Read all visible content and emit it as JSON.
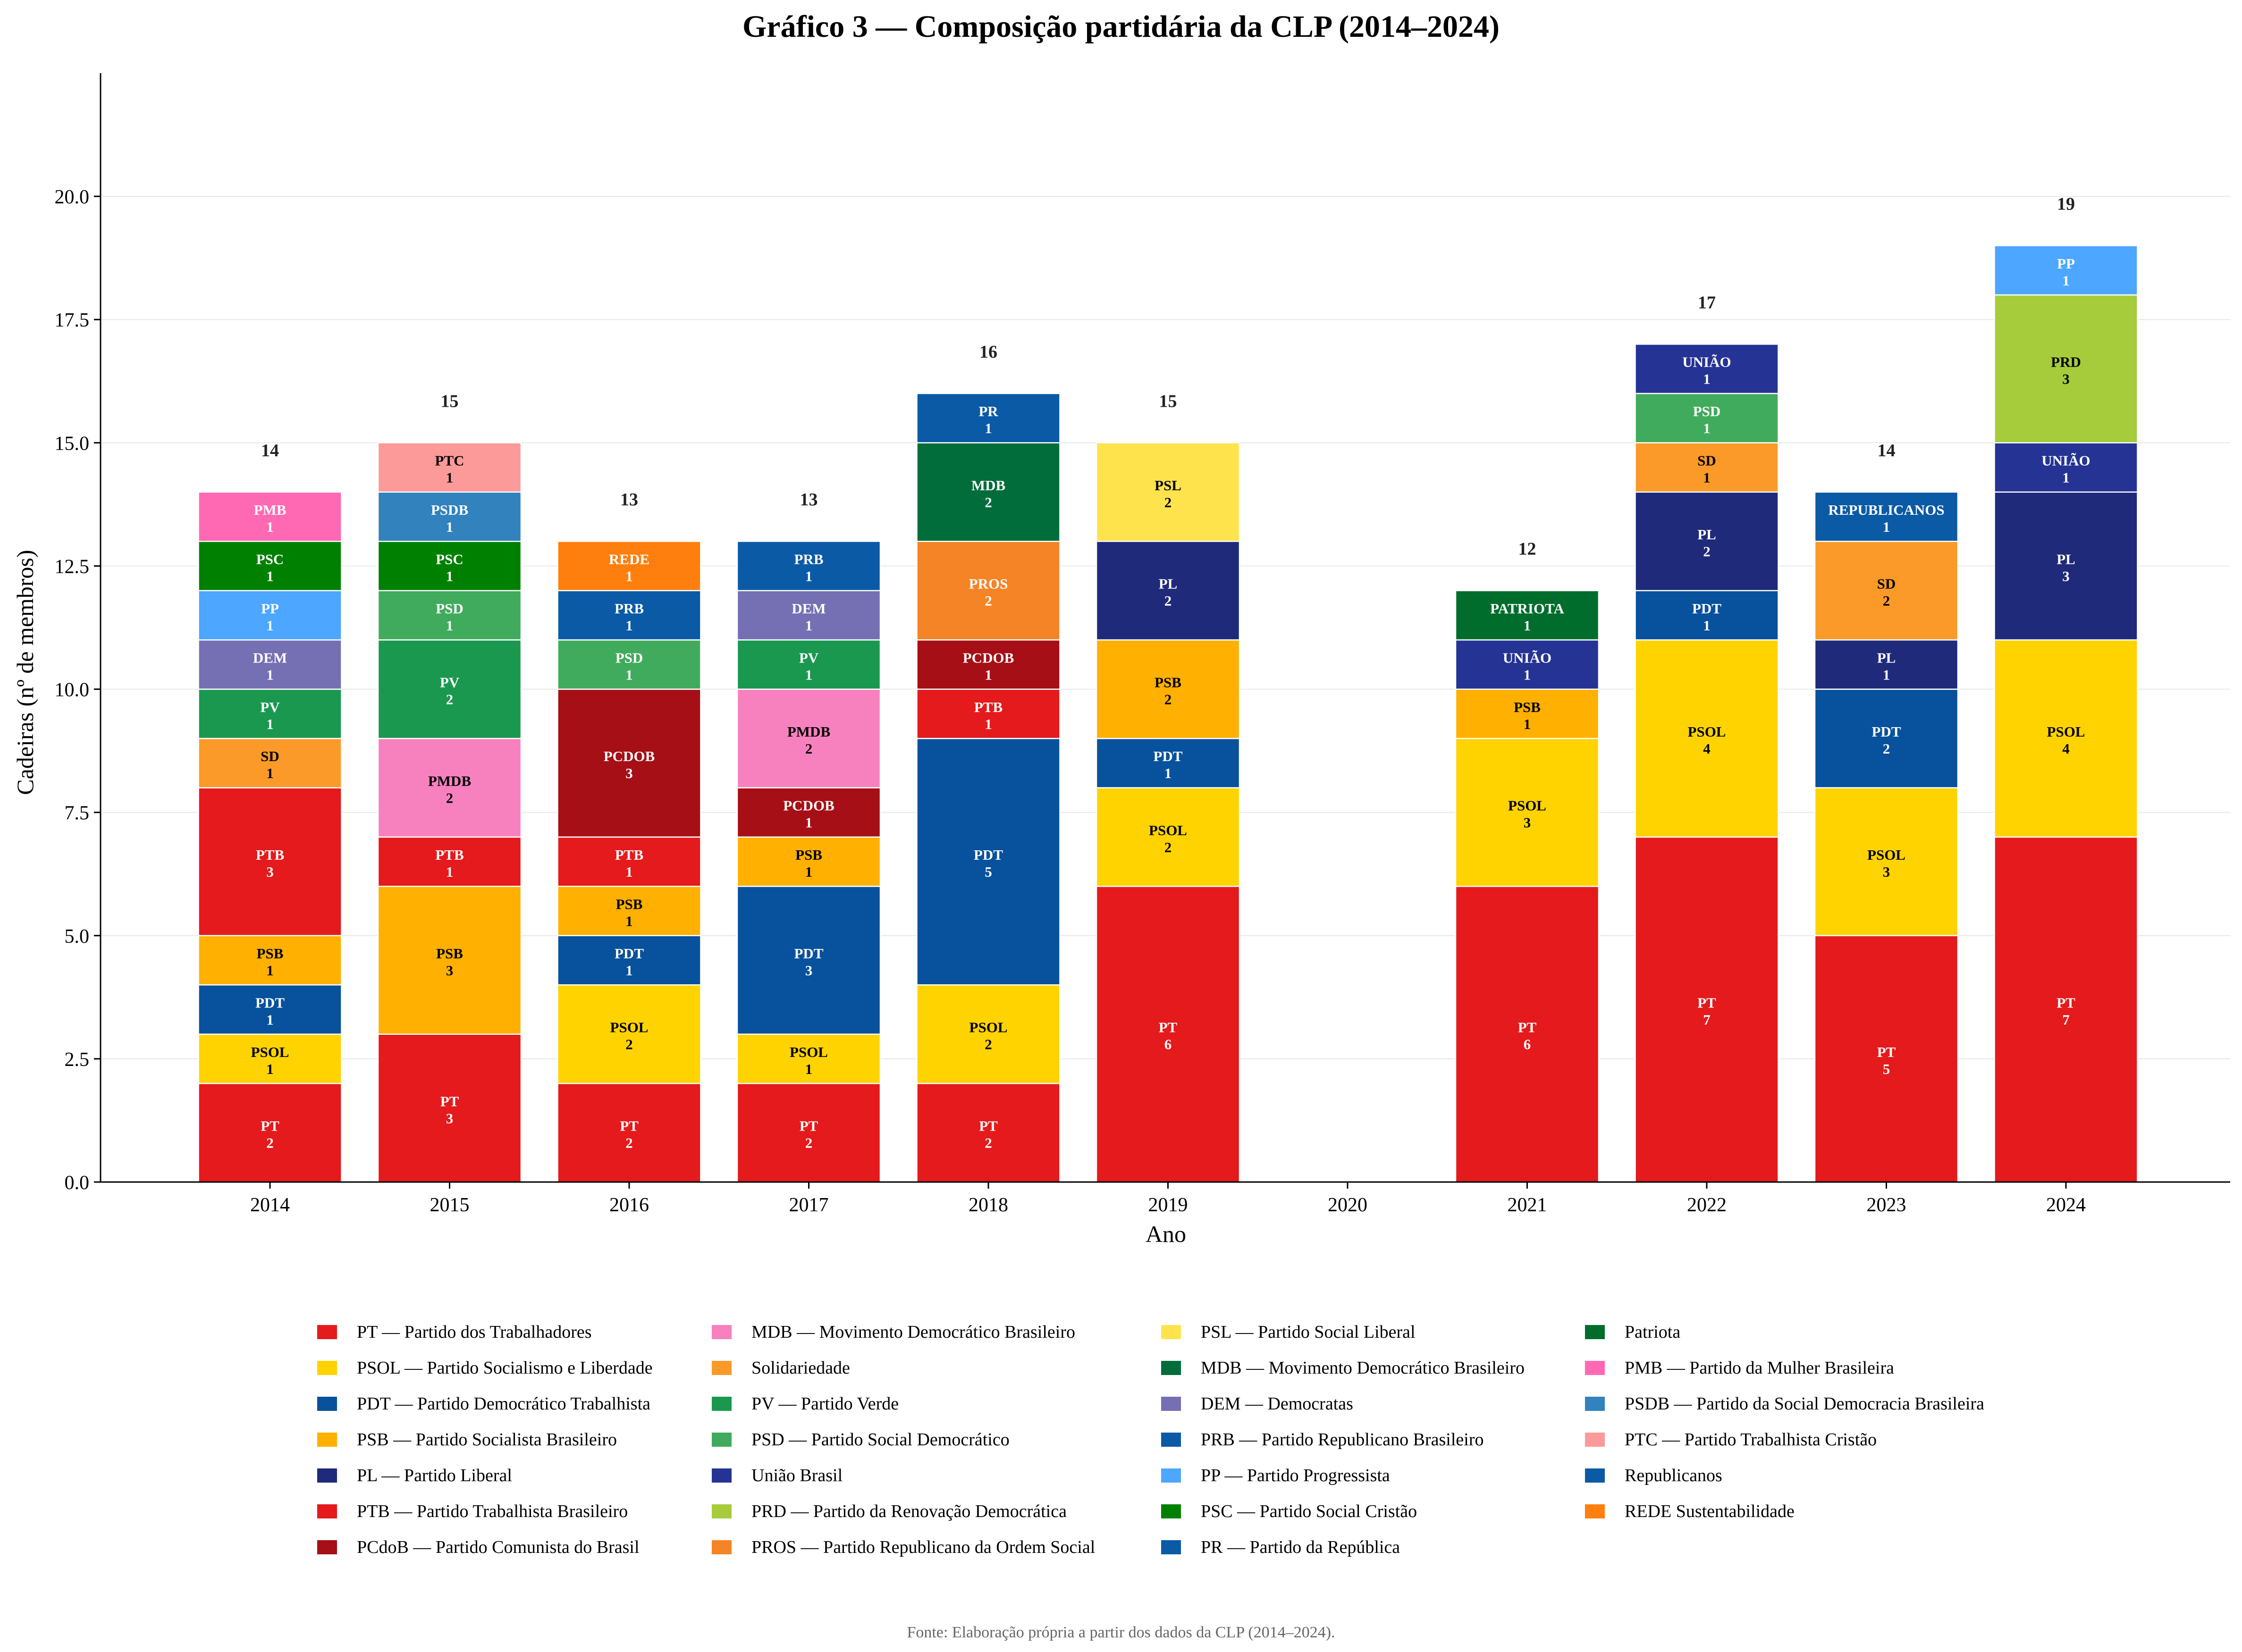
{
  "chart_data": {
    "type": "bar",
    "stacked": true,
    "title": "Gráfico 3 — Composição partidária da CLP (2014–2024)",
    "xlabel": "Ano",
    "ylabel": "Cadeiras (nº de membros)",
    "ylim": [
      0,
      22.5
    ],
    "yticks": [
      "0.0",
      "2.5",
      "5.0",
      "7.5",
      "10.0",
      "12.5",
      "15.0",
      "17.5",
      "20.0"
    ],
    "grid": "y",
    "source": "Fonte: Elaboração própria a partir dos dados da CLP (2014–2024).",
    "parties": {
      "PT": {
        "legend": "PT — Partido dos Trabalhadores",
        "color": "#e41a1c",
        "text": "#ffffff"
      },
      "PSOL": {
        "legend": "PSOL — Partido Socialismo e Liberdade",
        "color": "#ffd300",
        "text": "#000000"
      },
      "PDT": {
        "legend": "PDT — Partido Democrático Trabalhista",
        "color": "#08519c",
        "text": "#ffffff"
      },
      "PSB": {
        "legend": "PSB — Partido Socialista Brasileiro",
        "color": "#ffb000",
        "text": "#000000"
      },
      "PL": {
        "legend": "PL — Partido Liberal",
        "color": "#1f2a7a",
        "text": "#ffffff"
      },
      "PTB": {
        "legend": "PTB — Partido Trabalhista Brasileiro",
        "color": "#e41a1c",
        "text": "#ffffff"
      },
      "PCDOB": {
        "legend": "PCdoB — Partido Comunista do Brasil",
        "color": "#a50f15",
        "text": "#ffffff"
      },
      "PMDB": {
        "legend": "MDB — Movimento Democrático Brasileiro",
        "color": "#f781bf",
        "text": "#000000"
      },
      "SD": {
        "legend": "Solidariedade",
        "color": "#fb9a29",
        "text": "#000000"
      },
      "PV": {
        "legend": "PV — Partido Verde",
        "color": "#1a9850",
        "text": "#ffffff"
      },
      "PSD": {
        "legend": "PSD — Partido Social Democrático",
        "color": "#41ab5d",
        "text": "#ffffff"
      },
      "UNIÃO": {
        "legend": "União Brasil",
        "color": "#253494",
        "text": "#ffffff"
      },
      "PRD": {
        "legend": "PRD — Partido da Renovação Democrática",
        "color": "#a6cc3c",
        "text": "#000000"
      },
      "PROS": {
        "legend": "PROS — Partido Republicano da Ordem Social",
        "color": "#f58426",
        "text": "#ffffff"
      },
      "PSL": {
        "legend": "PSL — Partido Social Liberal",
        "color": "#ffe34d",
        "text": "#000000"
      },
      "MDB": {
        "legend": "MDB — Movimento Democrático Brasileiro",
        "color": "#006d3a",
        "text": "#ffffff"
      },
      "DEM": {
        "legend": "DEM — Democratas",
        "color": "#7570b3",
        "text": "#ffffff"
      },
      "PRB": {
        "legend": "PRB — Partido Republicano Brasileiro",
        "color": "#0b5aa6",
        "text": "#ffffff"
      },
      "PP": {
        "legend": "PP — Partido Progressista",
        "color": "#4da6ff",
        "text": "#ffffff"
      },
      "PSC": {
        "legend": "PSC — Partido Social Cristão",
        "color": "#008000",
        "text": "#ffffff"
      },
      "PR": {
        "legend": "PR — Partido da República",
        "color": "#0b5aa6",
        "text": "#ffffff"
      },
      "PATRIOTA": {
        "legend": "Patriota",
        "color": "#006d2c",
        "text": "#ffffff"
      },
      "PMB": {
        "legend": "PMB — Partido da Mulher Brasileira",
        "color": "#ff69b4",
        "text": "#ffffff"
      },
      "PSDB": {
        "legend": "PSDB — Partido da Social Democracia Brasileira",
        "color": "#3182bd",
        "text": "#ffffff"
      },
      "PTC": {
        "legend": "PTC — Partido Trabalhista Cristão",
        "color": "#fb9a99",
        "text": "#000000"
      },
      "REPUBLICANOS": {
        "legend": "Republicanos",
        "color": "#0b5aa6",
        "text": "#ffffff"
      },
      "REDE": {
        "legend": "REDE Sustentabilidade",
        "color": "#ff7f0e",
        "text": "#ffffff"
      }
    },
    "legend_order": [
      "PT",
      "PSOL",
      "PDT",
      "PSB",
      "PL",
      "PTB",
      "PCDOB",
      "PMDB",
      "SD",
      "PV",
      "PSD",
      "UNIÃO",
      "PRD",
      "PROS",
      "PSL",
      "MDB",
      "DEM",
      "PRB",
      "PP",
      "PSC",
      "PR",
      "PATRIOTA",
      "PMB",
      "PSDB",
      "PTC",
      "REPUBLICANOS",
      "REDE"
    ],
    "years": [
      {
        "year": "2014",
        "total": "14",
        "stack": [
          [
            "PT",
            2
          ],
          [
            "PSOL",
            1
          ],
          [
            "PDT",
            1
          ],
          [
            "PSB",
            1
          ],
          [
            "PTB",
            3
          ],
          [
            "SD",
            1
          ],
          [
            "PV",
            1
          ],
          [
            "DEM",
            1
          ],
          [
            "PP",
            1
          ],
          [
            "PSC",
            1
          ],
          [
            "PMB",
            1
          ]
        ]
      },
      {
        "year": "2015",
        "total": "15",
        "stack": [
          [
            "PT",
            3
          ],
          [
            "PSB",
            3
          ],
          [
            "PTB",
            1
          ],
          [
            "PMDB",
            2
          ],
          [
            "PV",
            2
          ],
          [
            "PSD",
            1
          ],
          [
            "PSC",
            1
          ],
          [
            "PSDB",
            1
          ],
          [
            "PTC",
            1
          ]
        ]
      },
      {
        "year": "2016",
        "total": "13",
        "stack": [
          [
            "PT",
            2
          ],
          [
            "PSOL",
            2
          ],
          [
            "PDT",
            1
          ],
          [
            "PSB",
            1
          ],
          [
            "PTB",
            1
          ],
          [
            "PCDOB",
            3
          ],
          [
            "PSD",
            1
          ],
          [
            "PRB",
            1
          ],
          [
            "REDE",
            1
          ]
        ]
      },
      {
        "year": "2017",
        "total": "13",
        "stack": [
          [
            "PT",
            2
          ],
          [
            "PSOL",
            1
          ],
          [
            "PDT",
            3
          ],
          [
            "PSB",
            1
          ],
          [
            "PCDOB",
            1
          ],
          [
            "PMDB",
            2
          ],
          [
            "PV",
            1
          ],
          [
            "DEM",
            1
          ],
          [
            "PRB",
            1
          ]
        ]
      },
      {
        "year": "2018",
        "total": "16",
        "stack": [
          [
            "PT",
            2
          ],
          [
            "PSOL",
            2
          ],
          [
            "PDT",
            5
          ],
          [
            "PTB",
            1
          ],
          [
            "PCDOB",
            1
          ],
          [
            "PROS",
            2
          ],
          [
            "MDB",
            2
          ],
          [
            "PR",
            1
          ]
        ]
      },
      {
        "year": "2019",
        "total": "15",
        "stack": [
          [
            "PT",
            6
          ],
          [
            "PSOL",
            2
          ],
          [
            "PDT",
            1
          ],
          [
            "PSB",
            2
          ],
          [
            "PL",
            2
          ],
          [
            "PSL",
            2
          ]
        ]
      },
      {
        "year": "2020",
        "total": "",
        "stack": []
      },
      {
        "year": "2021",
        "total": "12",
        "stack": [
          [
            "PT",
            6
          ],
          [
            "PSOL",
            3
          ],
          [
            "PSB",
            1
          ],
          [
            "UNIÃO",
            1
          ],
          [
            "PATRIOTA",
            1
          ]
        ]
      },
      {
        "year": "2022",
        "total": "17",
        "stack": [
          [
            "PT",
            7
          ],
          [
            "PSOL",
            4
          ],
          [
            "PDT",
            1
          ],
          [
            "PL",
            2
          ],
          [
            "SD",
            1
          ],
          [
            "PSD",
            1
          ],
          [
            "UNIÃO",
            1
          ]
        ]
      },
      {
        "year": "2023",
        "total": "14",
        "stack": [
          [
            "PT",
            5
          ],
          [
            "PSOL",
            3
          ],
          [
            "PDT",
            2
          ],
          [
            "PL",
            1
          ],
          [
            "SD",
            2
          ],
          [
            "REPUBLICANOS",
            1
          ]
        ]
      },
      {
        "year": "2024",
        "total": "19",
        "stack": [
          [
            "PT",
            7
          ],
          [
            "PSOL",
            4
          ],
          [
            "PL",
            3
          ],
          [
            "UNIÃO",
            1
          ],
          [
            "PRD",
            3
          ],
          [
            "PP",
            1
          ]
        ]
      }
    ]
  }
}
